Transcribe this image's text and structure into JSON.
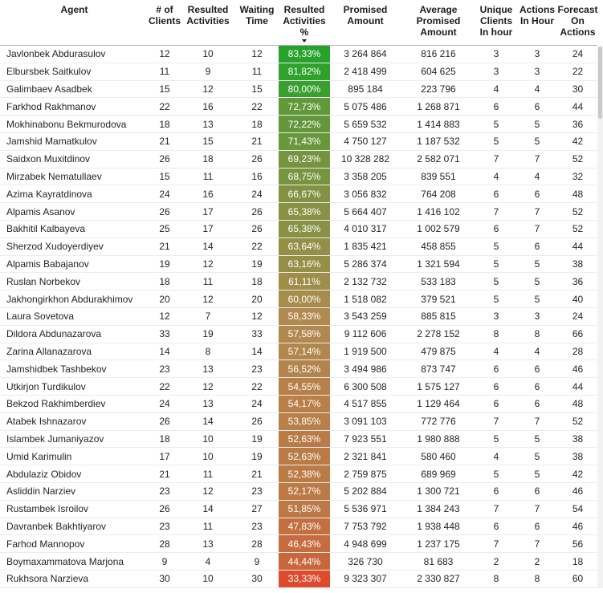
{
  "chart_data": {
    "type": "table",
    "title": "",
    "sort": {
      "column": "Resulted Activities %",
      "direction": "desc"
    },
    "grid": {
      "horizontal_gridlines": true,
      "vertical_gridlines": false
    },
    "columns": [
      {
        "id": "agent",
        "label": "Agent",
        "header_lines": [
          "Agent"
        ],
        "align": "left"
      },
      {
        "id": "num_clients",
        "label": "# of Clients",
        "header_lines": [
          "# of",
          "Clients"
        ],
        "align": "center"
      },
      {
        "id": "resulted_activities",
        "label": "Resulted Activities",
        "header_lines": [
          "Resulted",
          "Activities"
        ],
        "align": "center"
      },
      {
        "id": "waiting_time",
        "label": "Waiting Time",
        "header_lines": [
          "Waiting",
          "Time"
        ],
        "align": "center"
      },
      {
        "id": "resulted_pct",
        "label": "Resulted Activities %",
        "header_lines": [
          "Resulted",
          "Activities",
          "%"
        ],
        "align": "center",
        "sort": "desc"
      },
      {
        "id": "promised_amount",
        "label": "Promised Amount",
        "header_lines": [
          "Promised",
          "Amount"
        ],
        "align": "center"
      },
      {
        "id": "avg_promised_amount",
        "label": "Average Promised Amount",
        "header_lines": [
          "Average",
          "Promised",
          "Amount"
        ],
        "align": "center"
      },
      {
        "id": "unique_clients_in_hour",
        "label": "Unique Clients In hour",
        "header_lines": [
          "Unique",
          "Clients",
          "In hour"
        ],
        "align": "center"
      },
      {
        "id": "actions_in_hour",
        "label": "Actions In Hour",
        "header_lines": [
          "Actions",
          "In Hour"
        ],
        "align": "center"
      },
      {
        "id": "forecast_on_actions",
        "label": "Forecast On Actions",
        "header_lines": [
          "Forecast",
          "On",
          "Actions"
        ],
        "align": "center"
      }
    ],
    "rows": [
      [
        "Javlonbek Abdurasulov",
        12,
        10,
        12,
        "83,33%",
        "3 264 864",
        "816 216",
        3,
        3,
        24
      ],
      [
        "Elbursbek Saitkulov",
        11,
        9,
        11,
        "81,82%",
        "2 418 499",
        "604 625",
        3,
        3,
        22
      ],
      [
        "Galimbaev Asadbek",
        15,
        12,
        15,
        "80,00%",
        "895 184",
        "223 796",
        4,
        4,
        30
      ],
      [
        "Farkhod Rakhmanov",
        22,
        16,
        22,
        "72,73%",
        "5 075 486",
        "1 268 871",
        6,
        6,
        44
      ],
      [
        "Mokhinabonu Bekmurodova",
        18,
        13,
        18,
        "72,22%",
        "5 659 532",
        "1 414 883",
        5,
        5,
        36
      ],
      [
        "Jamshid Mamatkulov",
        21,
        15,
        21,
        "71,43%",
        "4 750 127",
        "1 187 532",
        5,
        5,
        42
      ],
      [
        "Saidxon Muxitdinov",
        26,
        18,
        26,
        "69,23%",
        "10 328 282",
        "2 582 071",
        7,
        7,
        52
      ],
      [
        "Mirzabek Nematullaev",
        15,
        11,
        16,
        "68,75%",
        "3 358 205",
        "839 551",
        4,
        4,
        32
      ],
      [
        "Azima Kayratdinova",
        24,
        16,
        24,
        "66,67%",
        "3 056 832",
        "764 208",
        6,
        6,
        48
      ],
      [
        "Alpamis Asanov",
        26,
        17,
        26,
        "65,38%",
        "5 664 407",
        "1 416 102",
        7,
        7,
        52
      ],
      [
        "Bakhitil Kalbayeva",
        25,
        17,
        26,
        "65,38%",
        "4 010 317",
        "1 002 579",
        6,
        7,
        52
      ],
      [
        "Sherzod Xudoyerdiyev",
        21,
        14,
        22,
        "63,64%",
        "1 835 421",
        "458 855",
        5,
        6,
        44
      ],
      [
        "Alpamis Babajanov",
        19,
        12,
        19,
        "63,16%",
        "5 286 374",
        "1 321 594",
        5,
        5,
        38
      ],
      [
        "Ruslan Norbekov",
        18,
        11,
        18,
        "61,11%",
        "2 132 732",
        "533 183",
        5,
        5,
        36
      ],
      [
        "Jakhongirkhon Abdurakhimov",
        20,
        12,
        20,
        "60,00%",
        "1 518 082",
        "379 521",
        5,
        5,
        40
      ],
      [
        "Laura Sovetova",
        12,
        7,
        12,
        "58,33%",
        "3 543 259",
        "885 815",
        3,
        3,
        24
      ],
      [
        "Dildora Abdunazarova",
        33,
        19,
        33,
        "57,58%",
        "9 112 606",
        "2 278 152",
        8,
        8,
        66
      ],
      [
        "Zarina Allanazarova",
        14,
        8,
        14,
        "57,14%",
        "1 919 500",
        "479 875",
        4,
        4,
        28
      ],
      [
        "Jamshidbek Tashbekov",
        23,
        13,
        23,
        "56,52%",
        "3 494 986",
        "873 747",
        6,
        6,
        46
      ],
      [
        "Utkirjon Turdikulov",
        22,
        12,
        22,
        "54,55%",
        "6 300 508",
        "1 575 127",
        6,
        6,
        44
      ],
      [
        "Bekzod Rakhimberdiev",
        24,
        13,
        24,
        "54,17%",
        "4 517 855",
        "1 129 464",
        6,
        6,
        48
      ],
      [
        "Atabek Ishnazarov",
        26,
        14,
        26,
        "53,85%",
        "3 091 103",
        "772 776",
        7,
        7,
        52
      ],
      [
        "Islambek Jumaniyazov",
        18,
        10,
        19,
        "52,63%",
        "7 923 551",
        "1 980 888",
        5,
        5,
        38
      ],
      [
        "Umid Karimulin",
        17,
        10,
        19,
        "52,63%",
        "2 321 841",
        "580 460",
        4,
        5,
        38
      ],
      [
        "Abdulaziz Obidov",
        21,
        11,
        21,
        "52,38%",
        "2 759 875",
        "689 969",
        5,
        5,
        42
      ],
      [
        "Asliddin Narziev",
        23,
        12,
        23,
        "52,17%",
        "5 202 884",
        "1 300 721",
        6,
        6,
        46
      ],
      [
        "Rustambek Isroilov",
        26,
        14,
        27,
        "51,85%",
        "5 536 971",
        "1 384 243",
        7,
        7,
        54
      ],
      [
        "Davranbek Bakhtiyarov",
        23,
        11,
        23,
        "47,83%",
        "7 753 792",
        "1 938 448",
        6,
        6,
        46
      ],
      [
        "Farhod Mannopov",
        28,
        13,
        28,
        "46,43%",
        "4 948 699",
        "1 237 175",
        7,
        7,
        56
      ],
      [
        "Boymaxammatova Marjona",
        9,
        4,
        9,
        "44,44%",
        "326 730",
        "81 683",
        2,
        2,
        18
      ],
      [
        "Rukhsora Narzieva",
        30,
        10,
        30,
        "33,33%",
        "9 323 307",
        "2 330 827",
        8,
        8,
        60
      ]
    ],
    "conditional_formatting": {
      "column": "Resulted Activities %",
      "text_color": "#ffffff",
      "scale": [
        {
          "value": 33.33,
          "color": "#de4a2c"
        },
        {
          "value": 58.33,
          "color": "#b08a4e"
        },
        {
          "value": 83.33,
          "color": "#27a22b"
        }
      ]
    }
  },
  "colors": {
    "header_text": "#1c1c1c",
    "body_text": "#252423",
    "header_border": "#b3b3b3",
    "row_border": "#ececec",
    "scrollbar_track": "#f2f2f2",
    "scrollbar_thumb": "#c9c9c9"
  }
}
